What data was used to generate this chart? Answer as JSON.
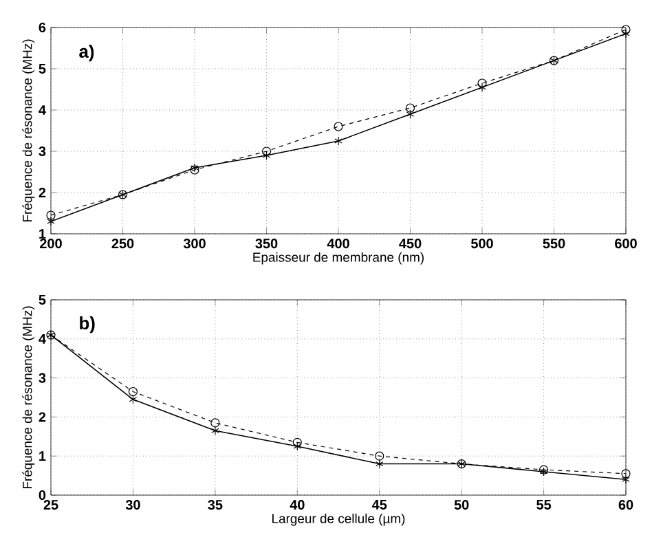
{
  "chart_data": [
    {
      "type": "line",
      "xlabel": "Epaisseur de membrane (nm)",
      "ylabel": "Fréquence de résonance (MHz)",
      "annotations": [
        "a)"
      ],
      "x": [
        200,
        250,
        300,
        350,
        400,
        450,
        500,
        550,
        600
      ],
      "xlim": [
        200,
        600
      ],
      "xticks": [
        200,
        250,
        300,
        350,
        400,
        450,
        500,
        550,
        600
      ],
      "ylim": [
        1,
        6
      ],
      "yticks": [
        1,
        2,
        3,
        4,
        5,
        6
      ],
      "grid": true,
      "series": [
        {
          "color": "#000000",
          "marker": "cross",
          "line_style": "solid",
          "values": [
            1.3,
            1.95,
            2.6,
            2.9,
            3.25,
            3.9,
            4.55,
            5.2,
            5.85
          ]
        },
        {
          "color": "#000000",
          "marker": "circle",
          "line_style": "dashed",
          "values": [
            1.45,
            1.95,
            2.55,
            3.0,
            3.6,
            4.05,
            4.65,
            5.2,
            5.95
          ]
        }
      ]
    },
    {
      "type": "line",
      "xlabel": "Largeur de cellule (µm)",
      "ylabel": "Fréquence de résonance (MHz)",
      "annotations": [
        "b)"
      ],
      "x": [
        25,
        30,
        35,
        40,
        45,
        50,
        55,
        60
      ],
      "xlim": [
        25,
        60
      ],
      "xticks": [
        25,
        30,
        35,
        40,
        45,
        50,
        55,
        60
      ],
      "ylim": [
        0,
        5
      ],
      "yticks": [
        0,
        1,
        2,
        3,
        4,
        5
      ],
      "grid": true,
      "series": [
        {
          "color": "#000000",
          "marker": "cross",
          "line_style": "solid",
          "values": [
            4.1,
            2.45,
            1.65,
            1.25,
            0.8,
            0.8,
            0.6,
            0.4
          ]
        },
        {
          "color": "#000000",
          "marker": "circle",
          "line_style": "dashed",
          "values": [
            4.1,
            2.65,
            1.85,
            1.35,
            1.0,
            0.8,
            0.65,
            0.55
          ]
        }
      ]
    }
  ]
}
